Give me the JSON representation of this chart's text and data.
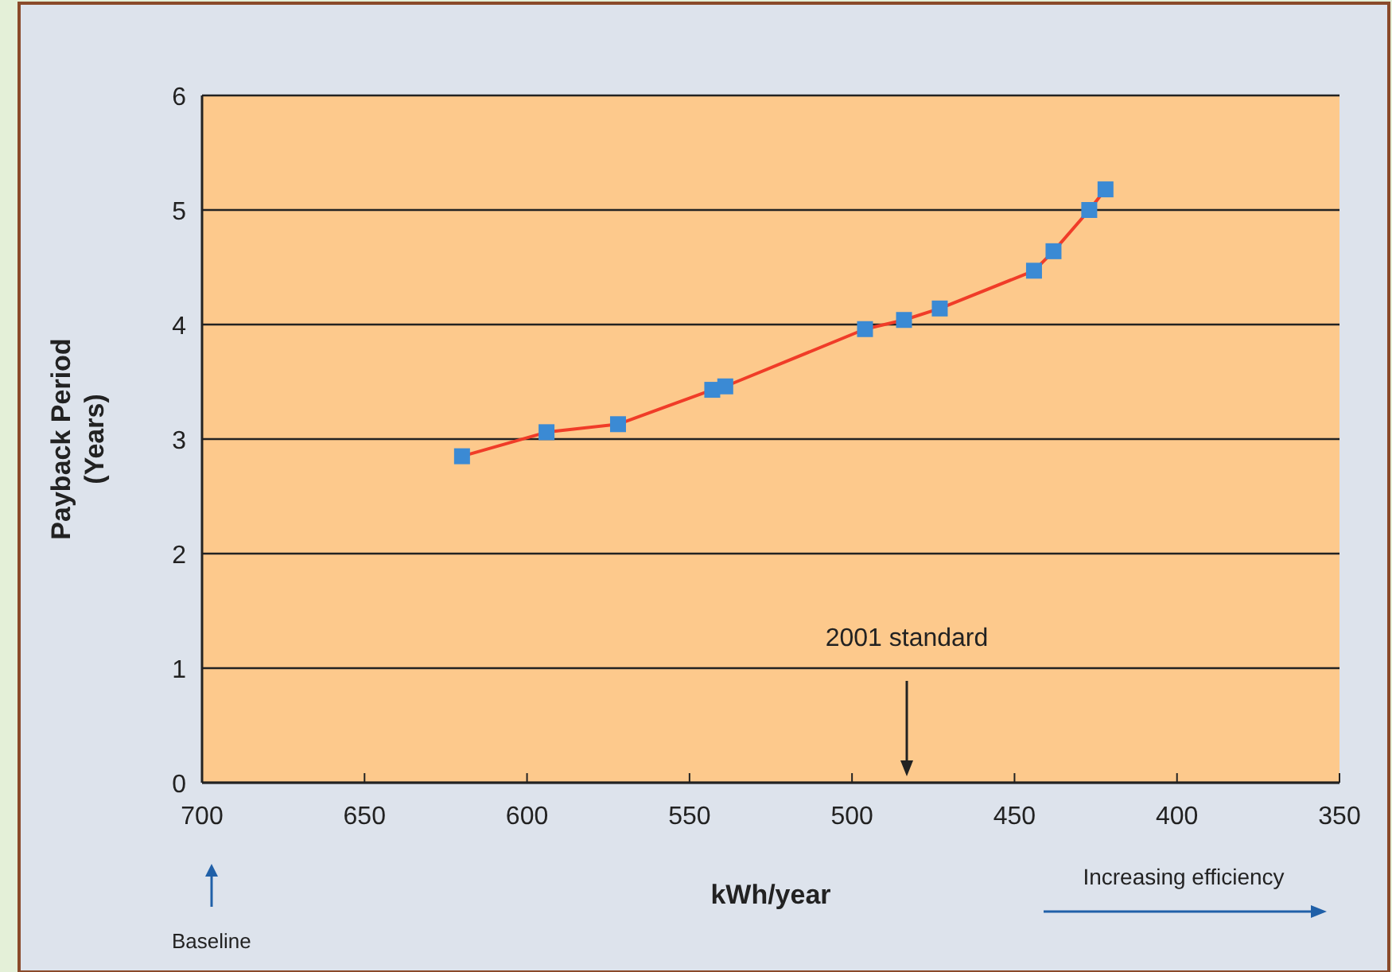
{
  "chart_data": {
    "type": "line",
    "ylabel": "Payback Period\n(Years)",
    "xlabel": "kWh/year",
    "x": [
      620,
      594,
      572,
      543,
      539,
      496,
      484,
      473,
      444,
      438,
      427,
      422
    ],
    "series": [
      {
        "color": "#f03c28",
        "values": [
          2.85,
          3.06,
          3.13,
          3.43,
          3.46,
          3.96,
          4.04,
          4.14,
          4.47,
          4.64,
          5.0,
          5.18
        ]
      }
    ],
    "xlim": [
      700,
      350
    ],
    "xticks": [
      700,
      650,
      600,
      550,
      500,
      450,
      400,
      350
    ],
    "ylim": [
      0,
      6
    ],
    "yticks": [
      0,
      1,
      2,
      3,
      4,
      5,
      6
    ],
    "grid": "y",
    "marker": "square",
    "line_style": "solid",
    "annotations": [
      "2001 standard",
      "Baseline",
      "Increasing efficiency"
    ]
  }
}
